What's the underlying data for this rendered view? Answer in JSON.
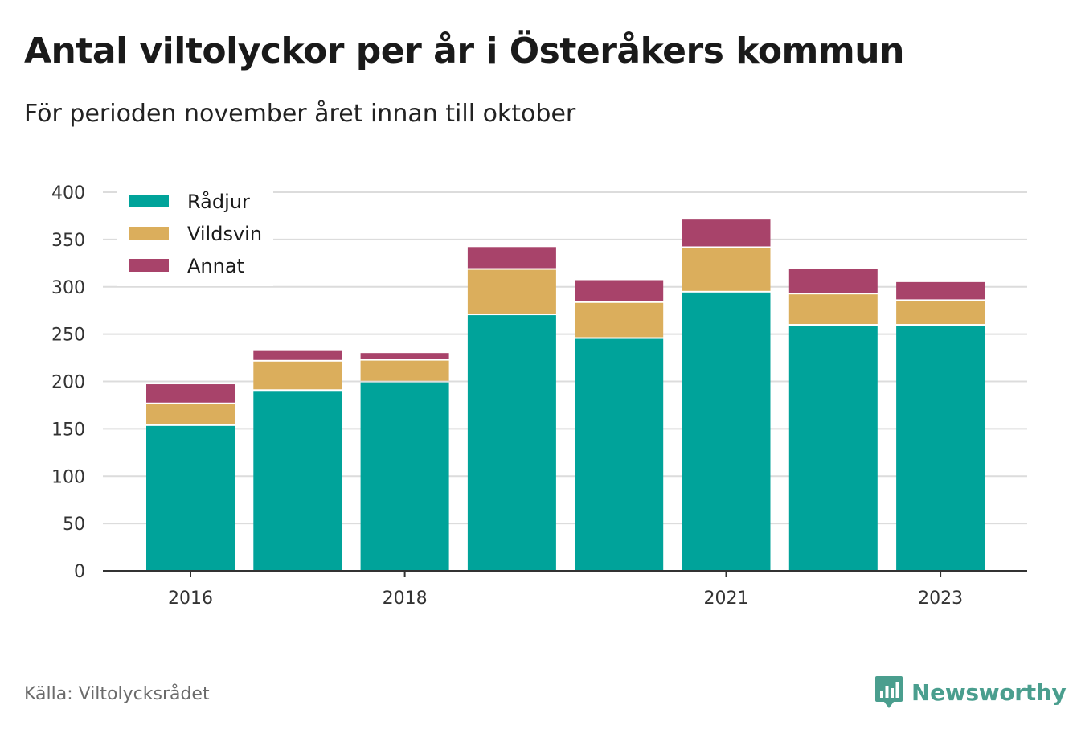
{
  "title": "Antal viltolyckor per år i Österåkers kommun",
  "subtitle": "För perioden november året innan till oktober",
  "source": "Källa: Viltolycksrådet",
  "brand": {
    "name": "Newsworthy",
    "icon": "newsworthy-logo-icon",
    "color": "#4a9e8e"
  },
  "chart_data": {
    "type": "bar",
    "stacked": true,
    "categories": [
      "2016",
      "2017",
      "2018",
      "2019",
      "2020",
      "2021",
      "2022",
      "2023"
    ],
    "x_tick_labels": [
      "2016",
      "2018",
      "2021",
      "2023"
    ],
    "series": [
      {
        "name": "Rådjur",
        "color": "#00a39a",
        "values": [
          153,
          190,
          199,
          270,
          245,
          294,
          259,
          259
        ]
      },
      {
        "name": "Vildsvin",
        "color": "#dbae5c",
        "values": [
          23,
          31,
          23,
          48,
          38,
          47,
          33,
          26
        ]
      },
      {
        "name": "Annat",
        "color": "#a8436a",
        "values": [
          21,
          12,
          8,
          24,
          24,
          30,
          27,
          20
        ]
      }
    ],
    "ylim": [
      0,
      400
    ],
    "yticks": [
      0,
      50,
      100,
      150,
      200,
      250,
      300,
      350,
      400
    ],
    "grid": true,
    "legend": "top-left",
    "xlabel": "",
    "ylabel": ""
  }
}
